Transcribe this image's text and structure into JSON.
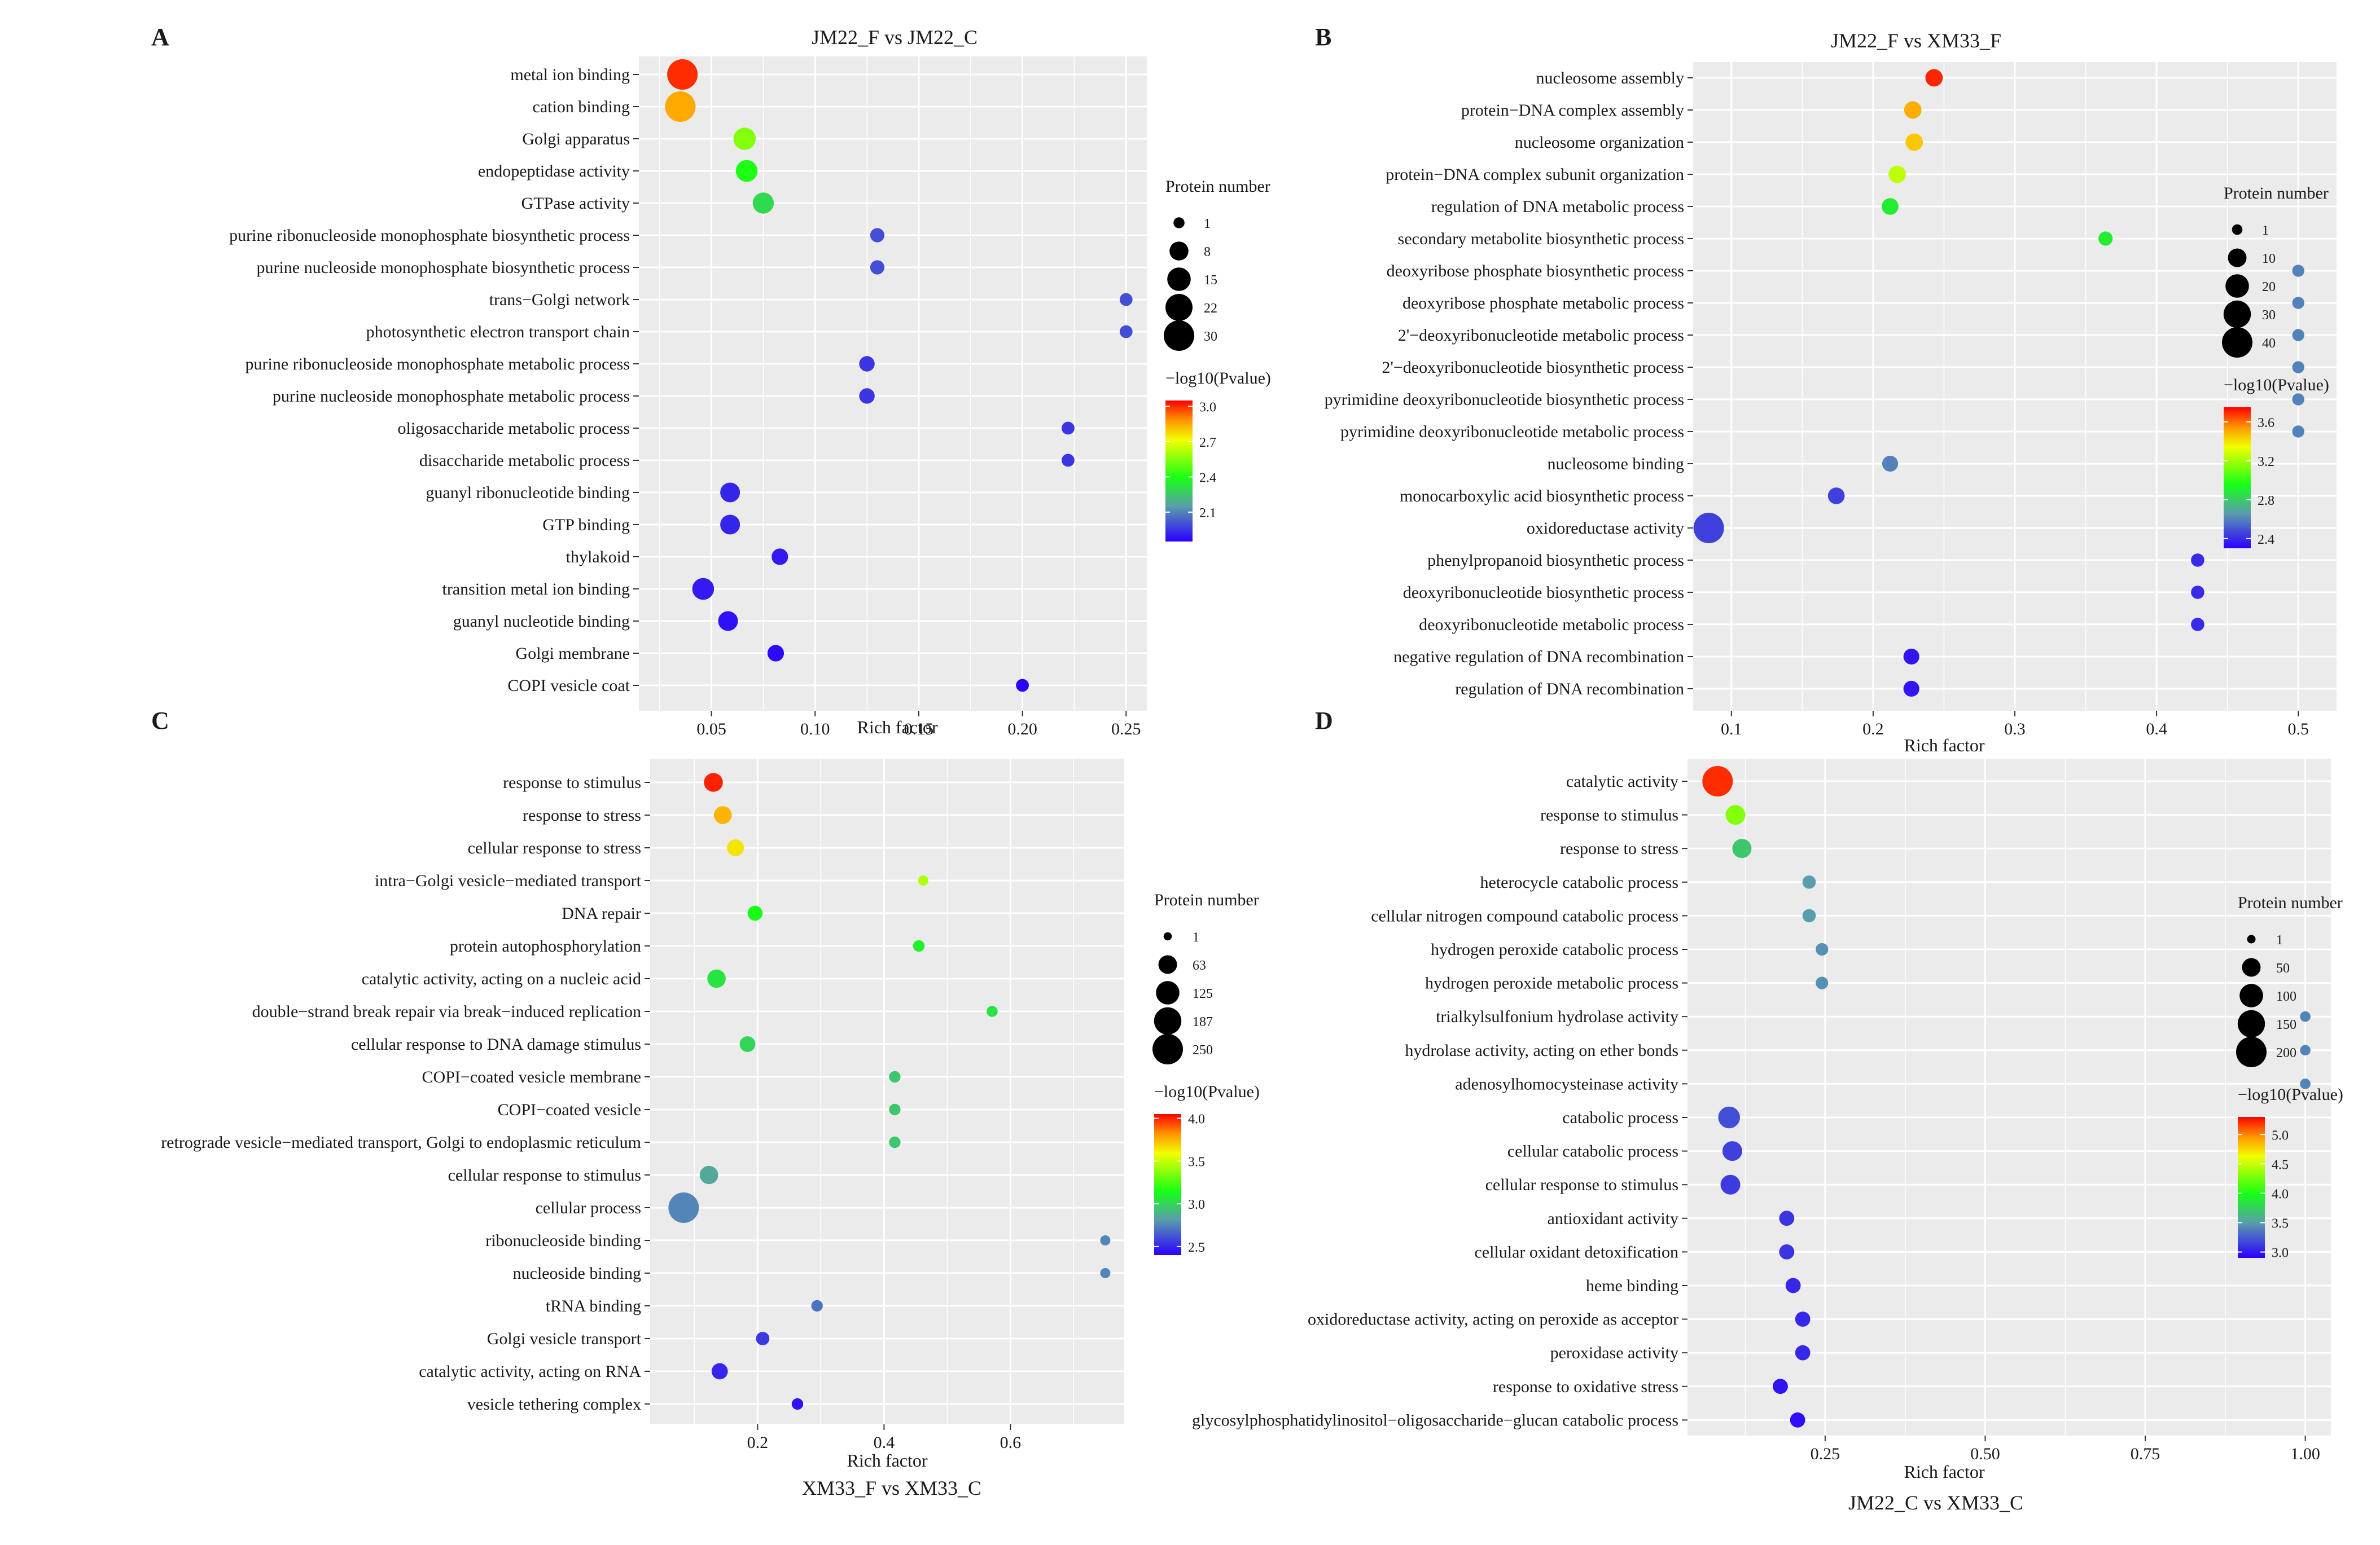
{
  "figure": {
    "size_legend_title": "Protein number",
    "color_legend_title": "−log10(Pvalue)"
  },
  "chart_data": [
    {
      "panel": "A",
      "type": "scatter",
      "title": "JM22_F vs JM22_C",
      "title_pos": "top",
      "xlabel": "Rich factor",
      "ylabel": "",
      "xlim": [
        0.015,
        0.26
      ],
      "xticks": [
        0.05,
        0.1,
        0.15,
        0.2,
        0.25
      ],
      "xtick_labels": [
        "0.05",
        "0.10",
        "0.15",
        "0.20",
        "0.25"
      ],
      "size_legend": {
        "values": [
          1,
          8,
          15,
          22,
          30
        ],
        "max": 30
      },
      "color_scale": {
        "min": 1.85,
        "max": 3.05,
        "ticks": [
          2.1,
          2.4,
          2.7,
          3.0
        ],
        "tick_labels": [
          "2.1",
          "2.4",
          "2.7",
          "3.0"
        ]
      },
      "points": [
        {
          "term": "metal ion binding",
          "x": 0.036,
          "count": 30,
          "logp": 3.0
        },
        {
          "term": "cation binding",
          "x": 0.035,
          "count": 30,
          "logp": 2.85
        },
        {
          "term": "Golgi apparatus",
          "x": 0.066,
          "count": 13,
          "logp": 2.55
        },
        {
          "term": "endopeptidase activity",
          "x": 0.067,
          "count": 12,
          "logp": 2.4
        },
        {
          "term": "GTPase activity",
          "x": 0.075,
          "count": 11,
          "logp": 2.3
        },
        {
          "term": "purine ribonucleoside monophosphate biosynthetic process",
          "x": 0.13,
          "count": 3,
          "logp": 2.0
        },
        {
          "term": "purine nucleoside monophosphate biosynthetic process",
          "x": 0.13,
          "count": 3,
          "logp": 2.0
        },
        {
          "term": "trans−Golgi network",
          "x": 0.25,
          "count": 2,
          "logp": 2.0
        },
        {
          "term": "photosynthetic electron transport chain",
          "x": 0.25,
          "count": 2,
          "logp": 2.0
        },
        {
          "term": "purine ribonucleoside monophosphate metabolic process",
          "x": 0.125,
          "count": 4,
          "logp": 1.95
        },
        {
          "term": "purine nucleoside monophosphate metabolic process",
          "x": 0.125,
          "count": 4,
          "logp": 1.95
        },
        {
          "term": "oligosaccharide metabolic process",
          "x": 0.222,
          "count": 2,
          "logp": 1.95
        },
        {
          "term": "disaccharide metabolic process",
          "x": 0.222,
          "count": 2,
          "logp": 1.95
        },
        {
          "term": "guanyl ribonucleotide binding",
          "x": 0.059,
          "count": 9,
          "logp": 1.92
        },
        {
          "term": "GTP binding",
          "x": 0.059,
          "count": 9,
          "logp": 1.92
        },
        {
          "term": "thylakoid",
          "x": 0.083,
          "count": 5,
          "logp": 1.9
        },
        {
          "term": "transition metal ion binding",
          "x": 0.046,
          "count": 12,
          "logp": 1.9
        },
        {
          "term": "guanyl nucleotide binding",
          "x": 0.058,
          "count": 9,
          "logp": 1.88
        },
        {
          "term": "Golgi membrane",
          "x": 0.081,
          "count": 5,
          "logp": 1.87
        },
        {
          "term": "COPI vesicle coat",
          "x": 0.2,
          "count": 2,
          "logp": 1.85
        }
      ]
    },
    {
      "panel": "B",
      "type": "scatter",
      "title": "JM22_F vs XM33_F",
      "title_pos": "top",
      "xlabel": "Rich factor",
      "ylabel": "",
      "xlim": [
        0.073,
        0.527
      ],
      "xticks": [
        0.1,
        0.2,
        0.3,
        0.4,
        0.5
      ],
      "xtick_labels": [
        "0.1",
        "0.2",
        "0.3",
        "0.4",
        "0.5"
      ],
      "size_legend": {
        "values": [
          1,
          10,
          20,
          30,
          40
        ],
        "max": 40
      },
      "color_scale": {
        "min": 2.3,
        "max": 3.75,
        "ticks": [
          2.4,
          2.8,
          3.2,
          3.6
        ],
        "tick_labels": [
          "2.4",
          "2.8",
          "3.2",
          "3.6"
        ]
      },
      "points": [
        {
          "term": "nucleosome assembly",
          "x": 0.243,
          "count": 8,
          "logp": 3.7
        },
        {
          "term": "protein−DNA complex assembly",
          "x": 0.228,
          "count": 8,
          "logp": 3.5
        },
        {
          "term": "nucleosome organization",
          "x": 0.229,
          "count": 8,
          "logp": 3.45
        },
        {
          "term": "protein−DNA complex subunit organization",
          "x": 0.217,
          "count": 8,
          "logp": 3.25
        },
        {
          "term": "regulation of DNA metabolic process",
          "x": 0.212,
          "count": 7,
          "logp": 2.9
        },
        {
          "term": "secondary metabolite biosynthetic process",
          "x": 0.364,
          "count": 4,
          "logp": 2.9
        },
        {
          "term": "deoxyribose phosphate biosynthetic process",
          "x": 0.5,
          "count": 2,
          "logp": 2.6
        },
        {
          "term": "deoxyribose phosphate metabolic process",
          "x": 0.5,
          "count": 2,
          "logp": 2.6
        },
        {
          "term": "2'−deoxyribonucleotide metabolic process",
          "x": 0.5,
          "count": 2,
          "logp": 2.6
        },
        {
          "term": "2'−deoxyribonucleotide biosynthetic process",
          "x": 0.5,
          "count": 2,
          "logp": 2.6
        },
        {
          "term": "pyrimidine deoxyribonucleotide biosynthetic process",
          "x": 0.5,
          "count": 2,
          "logp": 2.6
        },
        {
          "term": "pyrimidine deoxyribonucleotide metabolic process",
          "x": 0.5,
          "count": 2,
          "logp": 2.6
        },
        {
          "term": "nucleosome binding",
          "x": 0.212,
          "count": 6,
          "logp": 2.6
        },
        {
          "term": "monocarboxylic acid biosynthetic process",
          "x": 0.174,
          "count": 7,
          "logp": 2.45
        },
        {
          "term": "oxidoreductase activity",
          "x": 0.084,
          "count": 40,
          "logp": 2.45
        },
        {
          "term": "phenylpropanoid biosynthetic process",
          "x": 0.429,
          "count": 3,
          "logp": 2.4
        },
        {
          "term": "deoxyribonucleotide biosynthetic process",
          "x": 0.429,
          "count": 3,
          "logp": 2.4
        },
        {
          "term": "deoxyribonucleotide metabolic process",
          "x": 0.429,
          "count": 3,
          "logp": 2.4
        },
        {
          "term": "negative regulation of DNA recombination",
          "x": 0.227,
          "count": 6,
          "logp": 2.35
        },
        {
          "term": "regulation of DNA recombination",
          "x": 0.227,
          "count": 6,
          "logp": 2.35
        }
      ]
    },
    {
      "panel": "C",
      "type": "scatter",
      "title": "XM33_F vs XM33_C",
      "title_pos": "bottom",
      "xlabel": "Rich factor",
      "ylabel": "",
      "xlim": [
        0.03,
        0.78
      ],
      "xticks": [
        0.2,
        0.4,
        0.6
      ],
      "xtick_labels": [
        "0.2",
        "0.4",
        "0.6"
      ],
      "size_legend": {
        "values": [
          1,
          63,
          125,
          187,
          250
        ],
        "max": 250
      },
      "color_scale": {
        "min": 2.4,
        "max": 4.05,
        "ticks": [
          2.5,
          3.0,
          3.5,
          4.0
        ],
        "tick_labels": [
          "2.5",
          "3.0",
          "3.5",
          "4.0"
        ]
      },
      "points": [
        {
          "term": "response to stimulus",
          "x": 0.13,
          "count": 65,
          "logp": 4.0
        },
        {
          "term": "response to stress",
          "x": 0.145,
          "count": 55,
          "logp": 3.75
        },
        {
          "term": "cellular response to stress",
          "x": 0.165,
          "count": 45,
          "logp": 3.65
        },
        {
          "term": "intra−Golgi vesicle−mediated transport",
          "x": 0.462,
          "count": 5,
          "logp": 3.45
        },
        {
          "term": "DNA repair",
          "x": 0.196,
          "count": 30,
          "logp": 3.15
        },
        {
          "term": "protein autophosphorylation",
          "x": 0.455,
          "count": 10,
          "logp": 3.1
        },
        {
          "term": "catalytic activity, acting on a nucleic acid",
          "x": 0.135,
          "count": 60,
          "logp": 3.05
        },
        {
          "term": "double−strand break repair via break−induced replication",
          "x": 0.571,
          "count": 8,
          "logp": 3.05
        },
        {
          "term": "cellular response to DNA damage stimulus",
          "x": 0.184,
          "count": 35,
          "logp": 3.0
        },
        {
          "term": "COPI−coated vesicle membrane",
          "x": 0.417,
          "count": 10,
          "logp": 2.95
        },
        {
          "term": "COPI−coated vesicle",
          "x": 0.417,
          "count": 10,
          "logp": 2.95
        },
        {
          "term": "retrograde vesicle−mediated transport, Golgi to endoplasmic reticulum",
          "x": 0.417,
          "count": 10,
          "logp": 2.95
        },
        {
          "term": "cellular response to stimulus",
          "x": 0.123,
          "count": 60,
          "logp": 2.85
        },
        {
          "term": "cellular process",
          "x": 0.083,
          "count": 250,
          "logp": 2.75
        },
        {
          "term": "ribonucleoside binding",
          "x": 0.75,
          "count": 5,
          "logp": 2.75
        },
        {
          "term": "nucleoside binding",
          "x": 0.75,
          "count": 5,
          "logp": 2.75
        },
        {
          "term": "tRNA binding",
          "x": 0.294,
          "count": 10,
          "logp": 2.7
        },
        {
          "term": "Golgi vesicle transport",
          "x": 0.208,
          "count": 20,
          "logp": 2.55
        },
        {
          "term": "catalytic activity, acting on RNA",
          "x": 0.14,
          "count": 40,
          "logp": 2.5
        },
        {
          "term": "vesicle tethering complex",
          "x": 0.263,
          "count": 10,
          "logp": 2.45
        }
      ]
    },
    {
      "panel": "D",
      "type": "scatter",
      "title": "JM22_C vs XM33_C",
      "title_pos": "bottom",
      "xlabel": "Rich factor",
      "ylabel": "",
      "xlim": [
        0.035,
        1.04
      ],
      "xticks": [
        0.25,
        0.5,
        0.75,
        1.0
      ],
      "xtick_labels": [
        "0.25",
        "0.50",
        "0.75",
        "1.00"
      ],
      "size_legend": {
        "values": [
          1,
          50,
          100,
          150,
          200
        ],
        "max": 200
      },
      "color_scale": {
        "min": 2.9,
        "max": 5.3,
        "ticks": [
          3.0,
          3.5,
          4.0,
          4.5,
          5.0
        ],
        "tick_labels": [
          "3.0",
          "3.5",
          "4.0",
          "4.5",
          "5.0"
        ]
      },
      "points": [
        {
          "term": "catalytic activity",
          "x": 0.082,
          "count": 200,
          "logp": 5.2
        },
        {
          "term": "response to stimulus",
          "x": 0.11,
          "count": 60,
          "logp": 4.3
        },
        {
          "term": "response to stress",
          "x": 0.12,
          "count": 55,
          "logp": 3.7
        },
        {
          "term": "heterocycle catabolic process",
          "x": 0.225,
          "count": 15,
          "logp": 3.5
        },
        {
          "term": "cellular nitrogen compound catabolic process",
          "x": 0.225,
          "count": 15,
          "logp": 3.5
        },
        {
          "term": "hydrogen peroxide catabolic process",
          "x": 0.245,
          "count": 12,
          "logp": 3.45
        },
        {
          "term": "hydrogen peroxide metabolic process",
          "x": 0.245,
          "count": 12,
          "logp": 3.45
        },
        {
          "term": "trialkylsulfonium hydrolase activity",
          "x": 1.0,
          "count": 5,
          "logp": 3.4
        },
        {
          "term": "hydrolase activity, acting on ether bonds",
          "x": 1.0,
          "count": 5,
          "logp": 3.4
        },
        {
          "term": "adenosylhomocysteinase activity",
          "x": 1.0,
          "count": 5,
          "logp": 3.4
        },
        {
          "term": "catabolic process",
          "x": 0.1,
          "count": 80,
          "logp": 3.2
        },
        {
          "term": "cellular catabolic process",
          "x": 0.105,
          "count": 60,
          "logp": 3.15
        },
        {
          "term": "cellular response to stimulus",
          "x": 0.102,
          "count": 60,
          "logp": 3.12
        },
        {
          "term": "antioxidant activity",
          "x": 0.19,
          "count": 25,
          "logp": 3.1
        },
        {
          "term": "cellular oxidant detoxification",
          "x": 0.19,
          "count": 25,
          "logp": 3.1
        },
        {
          "term": "heme binding",
          "x": 0.2,
          "count": 25,
          "logp": 3.05
        },
        {
          "term": "oxidoreductase activity, acting on peroxide as acceptor",
          "x": 0.215,
          "count": 25,
          "logp": 3.05
        },
        {
          "term": "peroxidase activity",
          "x": 0.215,
          "count": 25,
          "logp": 3.05
        },
        {
          "term": "response to oxidative stress",
          "x": 0.18,
          "count": 25,
          "logp": 2.98
        },
        {
          "term": "glycosylphosphatidylinositol−oligosaccharide−glucan catabolic process",
          "x": 0.207,
          "count": 25,
          "logp": 2.95
        }
      ]
    }
  ]
}
